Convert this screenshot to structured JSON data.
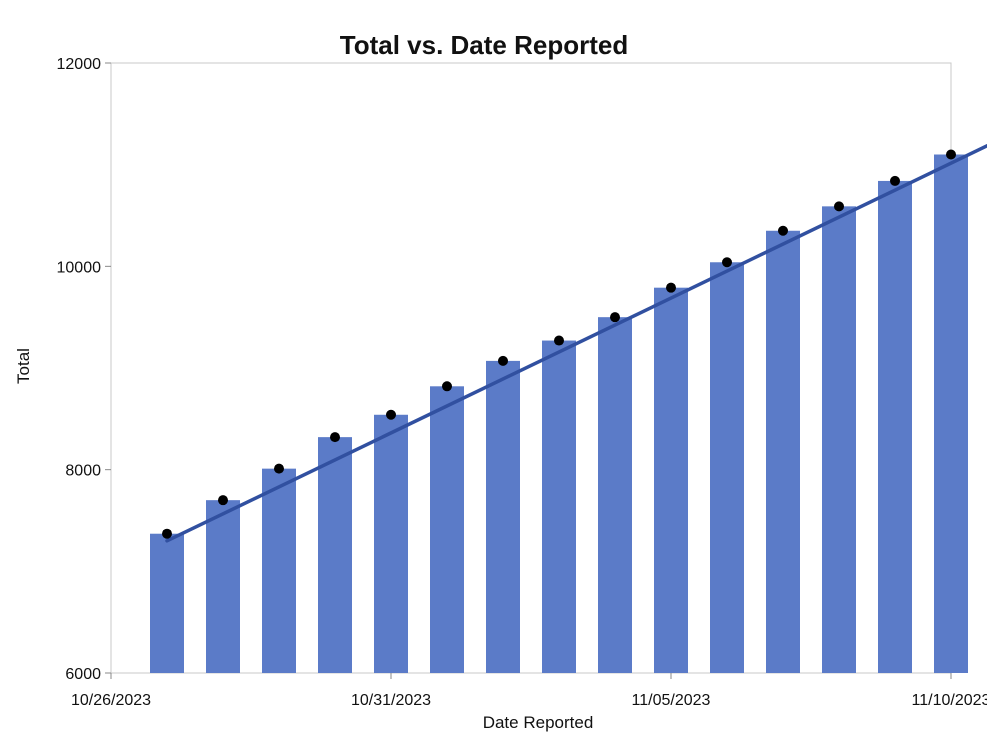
{
  "chart_data": {
    "type": "bar",
    "title": "Total vs. Date Reported",
    "xlabel": "Date Reported",
    "ylabel": "Total",
    "x_axis_type": "date",
    "xlim": [
      "2023-10-26",
      "2023-11-10"
    ],
    "x_tick_labels": [
      {
        "date": "2023-10-26",
        "label": "10/26/2023"
      },
      {
        "date": "2023-10-31",
        "label": "10/31/2023"
      },
      {
        "date": "2023-11-05",
        "label": "11/05/2023"
      },
      {
        "date": "2023-11-10",
        "label": "11/10/2023"
      }
    ],
    "ylim": [
      6000,
      12000
    ],
    "y_ticks": [
      6000,
      8000,
      10000,
      12000
    ],
    "y_tick_labels": [
      "6000",
      "8000",
      "10000",
      "12000"
    ],
    "bar_color": "#5b7bc8",
    "point_color": "#000000",
    "trend_color": "#3150a0",
    "grid": false,
    "legend": "none",
    "dates": [
      "2023-10-27",
      "2023-10-28",
      "2023-10-29",
      "2023-10-30",
      "2023-10-31",
      "2023-11-01",
      "2023-11-02",
      "2023-11-03",
      "2023-11-04",
      "2023-11-05",
      "2023-11-06",
      "2023-11-07",
      "2023-11-08",
      "2023-11-09",
      "2023-11-10"
    ],
    "values": [
      7370,
      7700,
      8010,
      8320,
      8540,
      8820,
      9070,
      9270,
      9500,
      9790,
      10040,
      10350,
      10590,
      10840,
      11100
    ],
    "trend_line": {
      "start": {
        "date": "2023-10-27",
        "value": 7300
      },
      "end": {
        "date": "2023-11-11",
        "value": 11280
      }
    }
  }
}
